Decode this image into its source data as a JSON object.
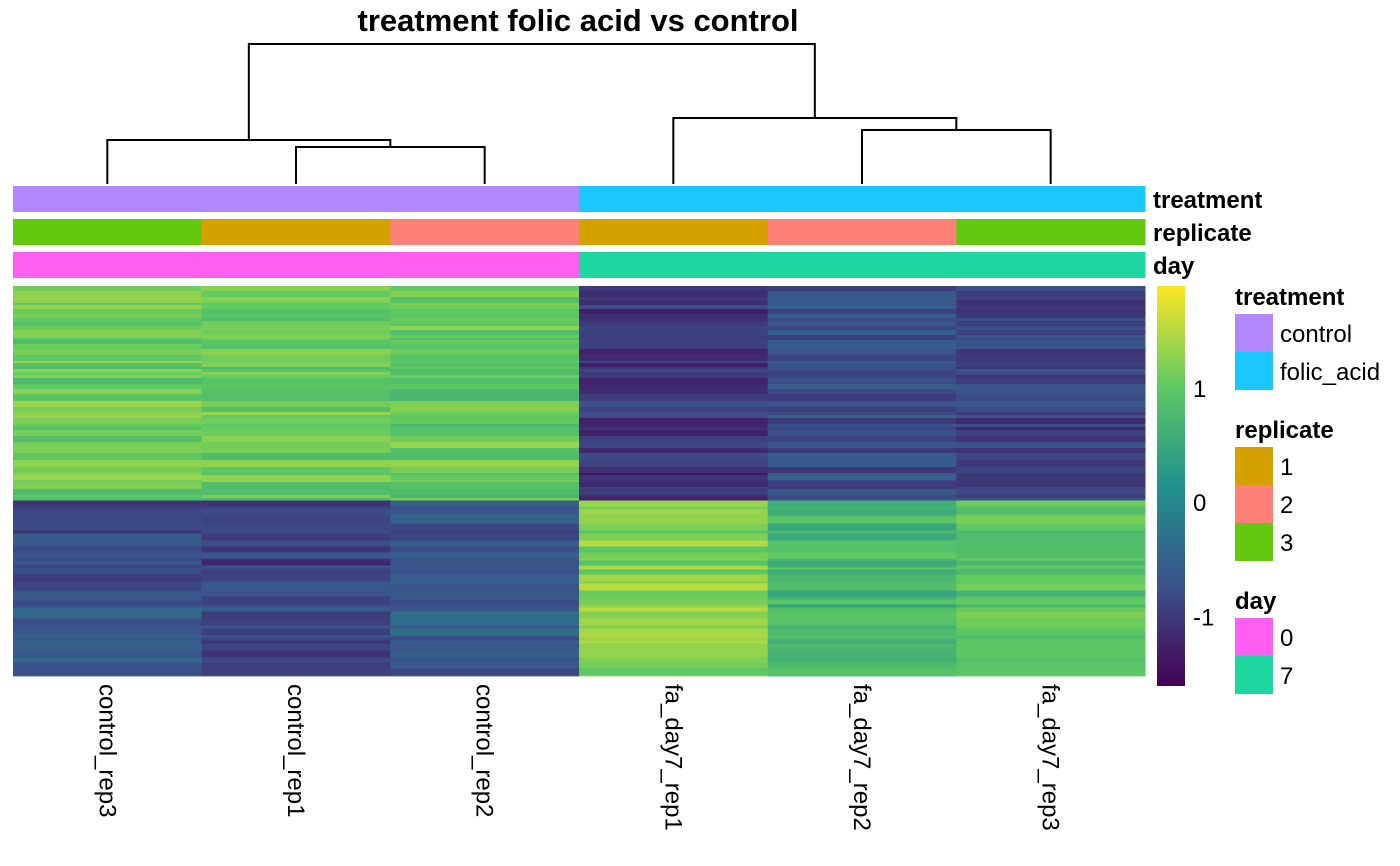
{
  "chart_data": {
    "type": "heatmap",
    "title": "treatment folic acid vs control",
    "columns": [
      "control_rep3",
      "control_rep1",
      "control_rep2",
      "fa_day7_rep1",
      "fa_day7_rep2",
      "fa_day7_rep3"
    ],
    "column_dendrogram": {
      "clusters": [
        [
          "control_rep3",
          [
            "control_rep1",
            "control_rep2"
          ]
        ],
        [
          "fa_day7_rep1",
          [
            "fa_day7_rep2",
            "fa_day7_rep3"
          ]
        ]
      ]
    },
    "annotations": [
      {
        "name": "treatment",
        "values": [
          "control",
          "control",
          "control",
          "folic_acid",
          "folic_acid",
          "folic_acid"
        ]
      },
      {
        "name": "replicate",
        "values": [
          "3",
          "1",
          "2",
          "1",
          "2",
          "3"
        ]
      },
      {
        "name": "day",
        "values": [
          "0",
          "0",
          "0",
          "7",
          "7",
          "7"
        ]
      }
    ],
    "legends": [
      {
        "title": "treatment",
        "items": [
          {
            "label": "control",
            "color": "#B388FF"
          },
          {
            "label": "folic_acid",
            "color": "#1AC8FF"
          }
        ]
      },
      {
        "title": "replicate",
        "items": [
          {
            "label": "1",
            "color": "#D4A100"
          },
          {
            "label": "2",
            "color": "#FF8077"
          },
          {
            "label": "3",
            "color": "#63C90F"
          }
        ]
      },
      {
        "title": "day",
        "items": [
          {
            "label": "0",
            "color": "#FF5EF0"
          },
          {
            "label": "7",
            "color": "#1ED6A0"
          }
        ]
      }
    ],
    "color_scale": {
      "palette": "viridis",
      "range": [
        -1.6,
        1.9
      ],
      "ticks": [
        1,
        0,
        -1
      ]
    },
    "row_blocks": [
      {
        "row_fraction": 0.55,
        "values": [
          1.1,
          1.05,
          1.0,
          -1.05,
          -0.75,
          -0.9
        ]
      },
      {
        "row_fraction": 0.45,
        "values": [
          -0.75,
          -0.85,
          -0.65,
          1.3,
          0.75,
          0.95
        ]
      }
    ]
  }
}
